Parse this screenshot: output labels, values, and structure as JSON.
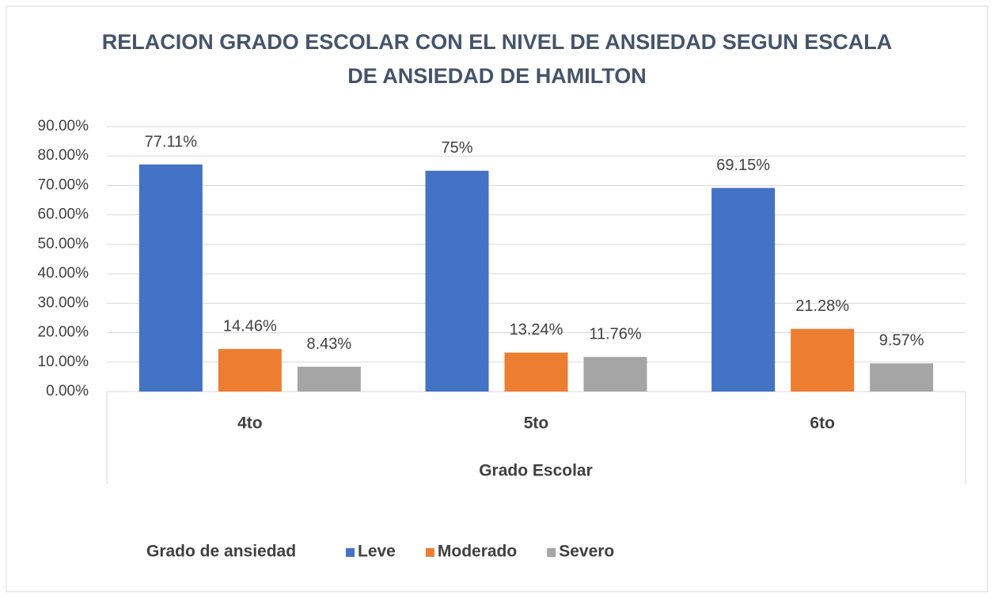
{
  "chart_data": {
    "type": "bar",
    "title": "RELACION GRADO ESCOLAR CON EL NIVEL DE ANSIEDAD SEGUN ESCALA DE ANSIEDAD DE HAMILTON",
    "x_label": "Grado Escolar",
    "legend_title": "Grado de ansiedad",
    "legend_position": "bottom",
    "grid": true,
    "categories": [
      "4to",
      "5to",
      "6to"
    ],
    "ylim": [
      0,
      90
    ],
    "yticks": [
      {
        "value": 0,
        "label": "0.00%"
      },
      {
        "value": 10,
        "label": "10.00%"
      },
      {
        "value": 20,
        "label": "20.00%"
      },
      {
        "value": 30,
        "label": "30.00%"
      },
      {
        "value": 40,
        "label": "40.00%"
      },
      {
        "value": 50,
        "label": "50.00%"
      },
      {
        "value": 60,
        "label": "60.00%"
      },
      {
        "value": 70,
        "label": "70.00%"
      },
      {
        "value": 80,
        "label": "80.00%"
      },
      {
        "value": 90,
        "label": "90.00%"
      }
    ],
    "series": [
      {
        "name": "Leve",
        "color": "#4472c4",
        "values": [
          77.11,
          75,
          69.15
        ],
        "value_labels": [
          "77.11%",
          "75%",
          "69.15%"
        ]
      },
      {
        "name": "Moderado",
        "color": "#ed7d31",
        "values": [
          14.46,
          13.24,
          21.28
        ],
        "value_labels": [
          "14.46%",
          "13.24%",
          "21.28%"
        ]
      },
      {
        "name": "Severo",
        "color": "#a5a5a5",
        "values": [
          8.43,
          11.76,
          9.57
        ],
        "value_labels": [
          "8.43%",
          "11.76%",
          "9.57%"
        ]
      }
    ]
  }
}
